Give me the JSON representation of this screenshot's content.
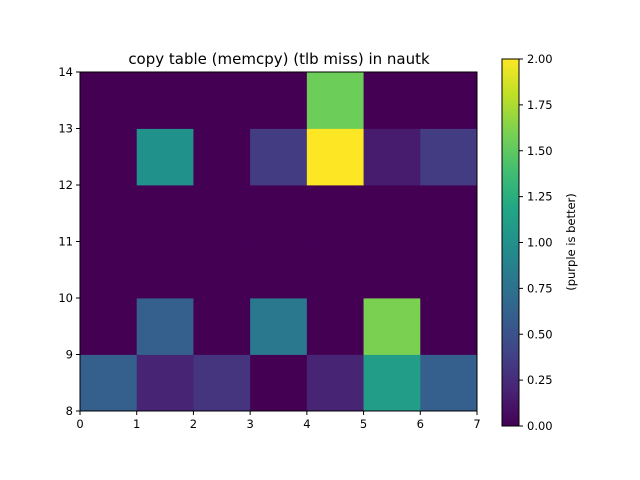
{
  "chart_data": {
    "type": "heatmap",
    "title": "copy table (memcpy) (tlb miss) in nautk",
    "xlabel": "",
    "ylabel": "",
    "x_edges": [
      0,
      1,
      2,
      3,
      4,
      5,
      6,
      7
    ],
    "y_edges": [
      8,
      9,
      10,
      11,
      12,
      13,
      14
    ],
    "x_ticks": [
      "0",
      "1",
      "2",
      "3",
      "4",
      "5",
      "6",
      "7"
    ],
    "y_ticks": [
      "8",
      "9",
      "10",
      "11",
      "12",
      "13",
      "14"
    ],
    "xlim": [
      0,
      7
    ],
    "ylim": [
      8,
      14
    ],
    "rows_bottom_to_top": [
      [
        0.6,
        0.2,
        0.3,
        0.0,
        0.2,
        1.1,
        0.6
      ],
      [
        0.0,
        0.6,
        0.0,
        0.8,
        0.0,
        1.6,
        0.0
      ],
      [
        0.0,
        0.0,
        0.0,
        0.0,
        0.0,
        0.0,
        0.0
      ],
      [
        0.0,
        0.0,
        0.0,
        0.0,
        0.0,
        0.0,
        0.0
      ],
      [
        0.0,
        1.0,
        0.0,
        0.35,
        2.0,
        0.15,
        0.35
      ],
      [
        0.0,
        0.0,
        0.0,
        0.0,
        1.55,
        0.0,
        0.0
      ]
    ],
    "colormap": "viridis",
    "colorbar": {
      "label": "(purple is better)",
      "range": [
        0.0,
        2.0
      ],
      "ticks": [
        "0.00",
        "0.25",
        "0.50",
        "0.75",
        "1.00",
        "1.25",
        "1.50",
        "1.75",
        "2.00"
      ]
    },
    "grid": false,
    "legend": "none"
  }
}
